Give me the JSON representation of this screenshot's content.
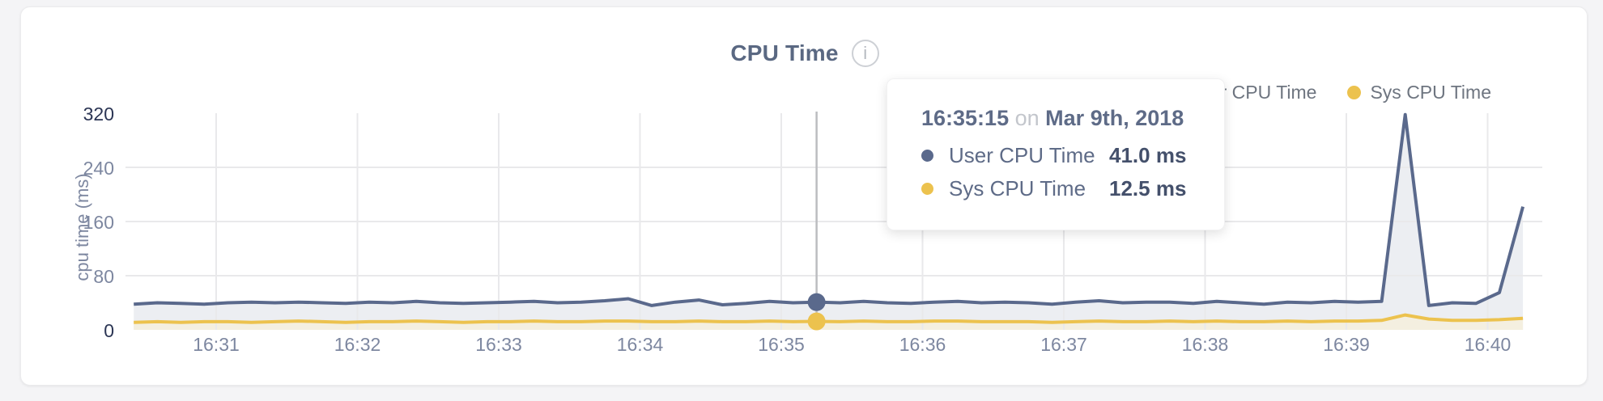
{
  "header": {
    "title": "CPU Time",
    "info_glyph": "i"
  },
  "legend": {
    "items": [
      {
        "label": "User CPU Time",
        "color": "#5a698c"
      },
      {
        "label": "Sys CPU Time",
        "color": "#ecc24e"
      }
    ]
  },
  "tooltip": {
    "time": "16:35:15",
    "conjunction": "on",
    "date": "Mar 9th, 2018",
    "rows": [
      {
        "label": "User CPU Time",
        "value": "41.0 ms",
        "color": "#5a698c"
      },
      {
        "label": "Sys CPU Time",
        "value": "12.5 ms",
        "color": "#ecc24e"
      }
    ]
  },
  "chart_data": {
    "type": "area",
    "title": "CPU Time",
    "xlabel": "",
    "ylabel": "cpu time (ms)",
    "ylim": [
      0,
      320
    ],
    "yticks": [
      0,
      80,
      160,
      240,
      320
    ],
    "xticks": [
      "16:31",
      "16:32",
      "16:33",
      "16:34",
      "16:35",
      "16:36",
      "16:37",
      "16:38",
      "16:39",
      "16:40"
    ],
    "grid": true,
    "legend_position": "top-right",
    "x": [
      "16:30:25",
      "16:30:35",
      "16:30:45",
      "16:30:55",
      "16:31:05",
      "16:31:15",
      "16:31:25",
      "16:31:35",
      "16:31:45",
      "16:31:55",
      "16:32:05",
      "16:32:15",
      "16:32:25",
      "16:32:35",
      "16:32:45",
      "16:32:55",
      "16:33:05",
      "16:33:15",
      "16:33:25",
      "16:33:35",
      "16:33:45",
      "16:33:55",
      "16:34:05",
      "16:34:15",
      "16:34:25",
      "16:34:35",
      "16:34:45",
      "16:34:55",
      "16:35:05",
      "16:35:15",
      "16:35:25",
      "16:35:35",
      "16:35:45",
      "16:35:55",
      "16:36:05",
      "16:36:15",
      "16:36:25",
      "16:36:35",
      "16:36:45",
      "16:36:55",
      "16:37:05",
      "16:37:15",
      "16:37:25",
      "16:37:35",
      "16:37:45",
      "16:37:55",
      "16:38:05",
      "16:38:15",
      "16:38:25",
      "16:38:35",
      "16:38:45",
      "16:38:55",
      "16:39:05",
      "16:39:15",
      "16:39:25",
      "16:39:35",
      "16:39:45",
      "16:39:55",
      "16:40:05",
      "16:40:15"
    ],
    "series": [
      {
        "name": "User CPU Time",
        "color": "#5a698c",
        "fill": "#eceef2",
        "values": [
          38,
          40,
          39,
          38,
          40,
          41,
          40,
          41,
          40,
          39,
          41,
          40,
          42,
          40,
          39,
          40,
          41,
          42,
          40,
          41,
          43,
          46,
          36,
          41,
          44,
          37,
          39,
          42,
          40,
          41,
          40,
          42,
          40,
          39,
          41,
          42,
          40,
          41,
          40,
          38,
          41,
          43,
          40,
          41,
          41,
          39,
          42,
          40,
          38,
          41,
          40,
          42,
          41,
          42,
          318,
          36,
          40,
          39,
          55,
          182
        ]
      },
      {
        "name": "Sys CPU Time",
        "color": "#ecc24e",
        "fill": "#f4efe0",
        "values": [
          11,
          12,
          11,
          12,
          12,
          11,
          12,
          13,
          12,
          11,
          12,
          12,
          13,
          12,
          11,
          12,
          12,
          13,
          12,
          12,
          13,
          13,
          12,
          12,
          13,
          12,
          12,
          13,
          12,
          12.5,
          12,
          13,
          12,
          12,
          13,
          13,
          12,
          12,
          12,
          11,
          12,
          13,
          12,
          12,
          13,
          12,
          13,
          12,
          12,
          13,
          12,
          13,
          13,
          14,
          22,
          16,
          14,
          14,
          15,
          17
        ]
      }
    ],
    "hover": {
      "time": "16:35:15",
      "values": [
        41.0,
        12.5
      ]
    }
  }
}
